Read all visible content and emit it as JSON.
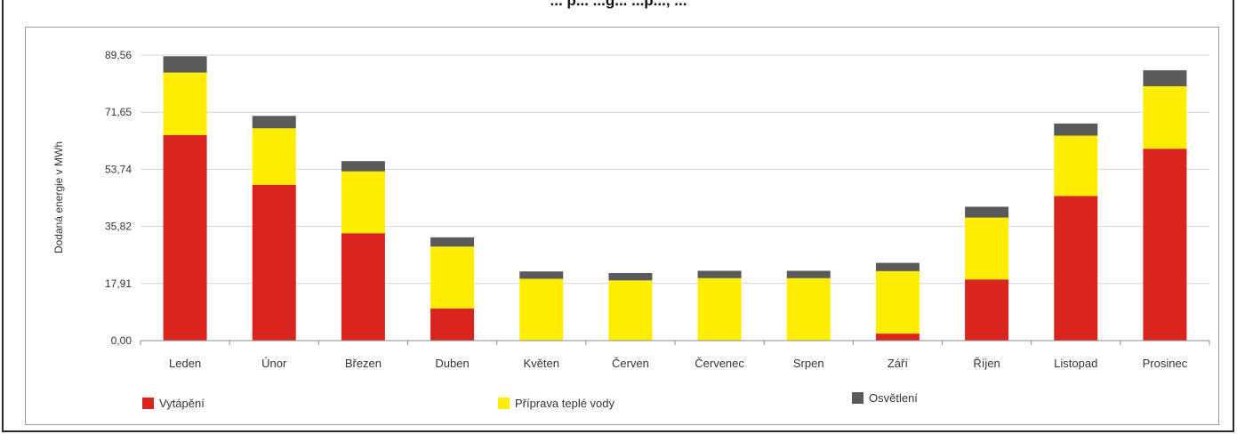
{
  "header": {
    "title": "... p... ...g... ...p..., ..."
  },
  "chart_data": {
    "type": "bar",
    "stacked": true,
    "title": "",
    "xlabel": "",
    "ylabel": "Dodaná energie v MWh",
    "ylim": [
      0,
      89.56
    ],
    "yticks": [
      "0,00",
      "17,91",
      "35,82",
      "53,74",
      "71,65",
      "89,56"
    ],
    "ytick_values": [
      0,
      17.91,
      35.82,
      53.74,
      71.65,
      89.56
    ],
    "grid": true,
    "legend_position": "bottom",
    "categories": [
      "Leden",
      "Únor",
      "Březen",
      "Duben",
      "Květen",
      "Červen",
      "Červenec",
      "Srpen",
      "Září",
      "Říjen",
      "Listopad",
      "Prosinec"
    ],
    "series": [
      {
        "name": "Vytápění",
        "color": "#d9251d",
        "values": [
          64.5,
          48.9,
          33.7,
          10.1,
          0,
          0,
          0,
          0,
          2.2,
          19.2,
          45.4,
          60.2
        ]
      },
      {
        "name": "Příprava teplé vody",
        "color": "#ffee00",
        "values": [
          19.6,
          17.7,
          19.4,
          19.4,
          19.4,
          18.9,
          19.6,
          19.6,
          19.6,
          19.4,
          18.9,
          19.6
        ]
      },
      {
        "name": "Osvětlení",
        "color": "#5a5a5a",
        "values": [
          5.1,
          3.9,
          3.2,
          2.9,
          2.3,
          2.3,
          2.3,
          2.3,
          2.6,
          3.4,
          3.8,
          5.0
        ]
      }
    ]
  }
}
